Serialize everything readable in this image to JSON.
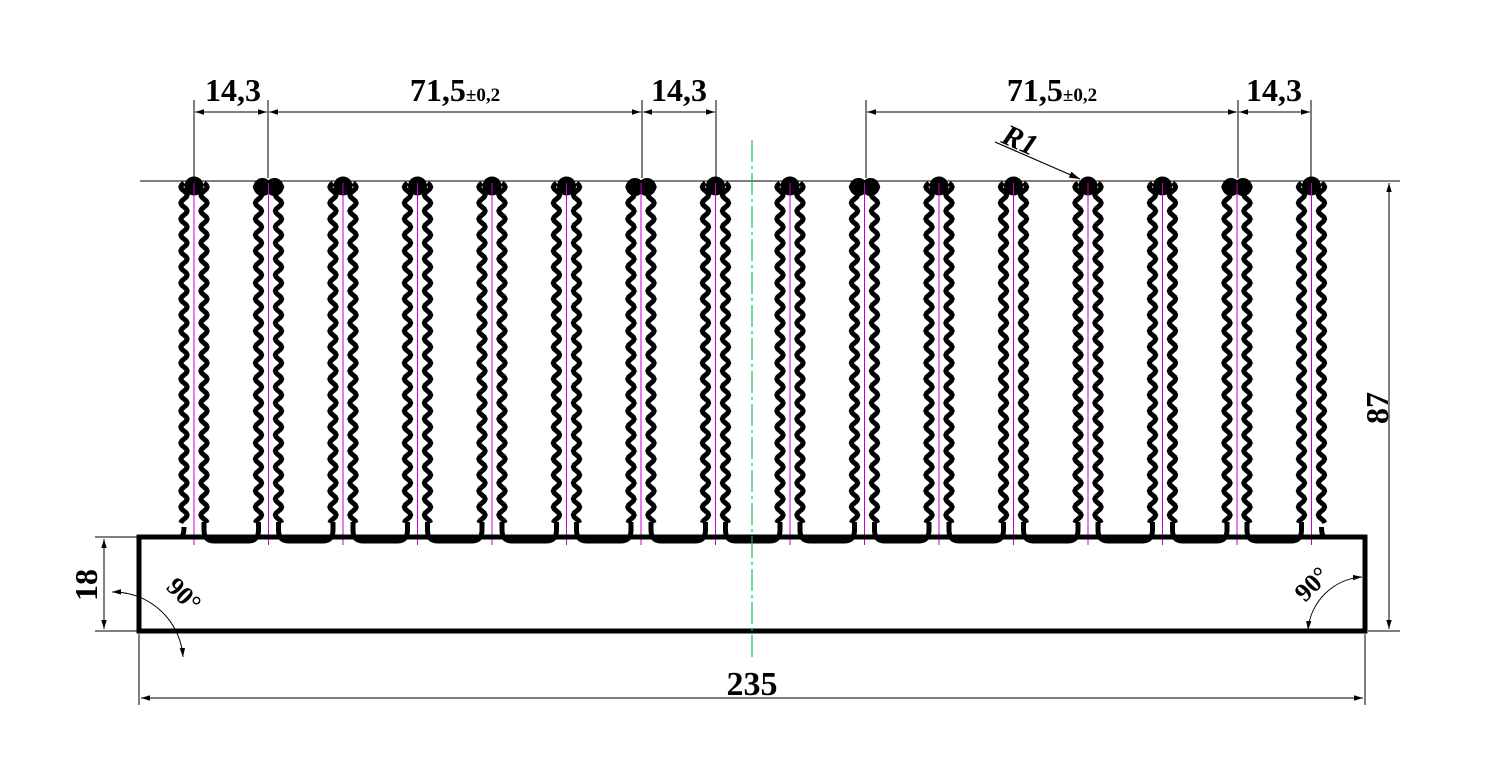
{
  "dimensions": {
    "pitch_left": "14,3",
    "span_left_value": "71,5",
    "span_left_tol": "±0,2",
    "pitch_mid": "14,3",
    "span_right_value": "71,5",
    "span_right_tol": "±0,2",
    "pitch_right": "14,3",
    "radius": "R1",
    "height_total": "87",
    "base_thickness": "18",
    "width_total": "235"
  },
  "angles": {
    "left": "90°",
    "right": "90°"
  },
  "colors": {
    "profile": "#000000",
    "centerline": "#00cc44",
    "fin_axis": "#cc00cc",
    "dimension": "#000000"
  },
  "fins": {
    "count": 16,
    "twin_tip_indices": [
      1,
      6,
      9,
      14
    ]
  }
}
